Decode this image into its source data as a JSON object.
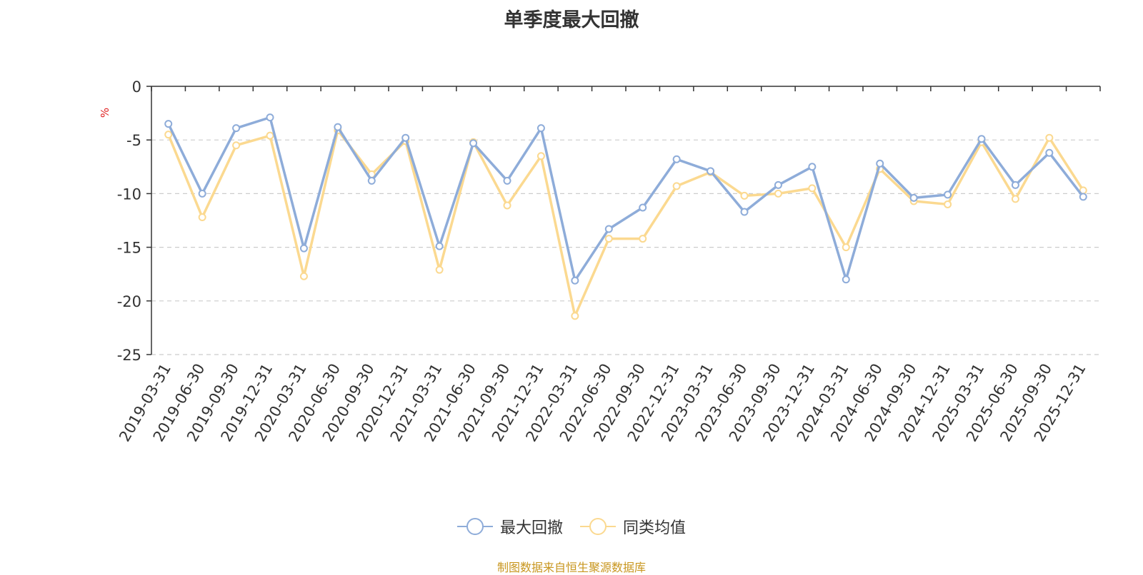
{
  "chart_data": {
    "type": "line",
    "title": "单季度最大回撤",
    "ylabel": "%",
    "ylim": [
      -25,
      0
    ],
    "yticks": [
      0,
      -5,
      -10,
      -15,
      -20,
      -25
    ],
    "grid": true,
    "legend_position": "bottom-center",
    "categories": [
      "2019-03-31",
      "2019-06-30",
      "2019-09-30",
      "2019-12-31",
      "2020-03-31",
      "2020-06-30",
      "2020-09-30",
      "2020-12-31",
      "2021-03-31",
      "2021-06-30",
      "2021-09-30",
      "2021-12-31",
      "2022-03-31",
      "2022-06-30",
      "2022-09-30",
      "2022-12-31",
      "2023-03-31",
      "2023-06-30",
      "2023-09-30",
      "2023-12-31",
      "2024-03-31",
      "2024-06-30",
      "2024-09-30",
      "2024-12-31",
      "2025-03-31",
      "2025-06-30",
      "2025-09-30",
      "2025-12-31"
    ],
    "series": [
      {
        "name": "最大回撤",
        "color": "#8eacd9",
        "values": [
          -3.5,
          -10.0,
          -3.9,
          -2.9,
          -15.1,
          -3.8,
          -8.8,
          -4.8,
          -14.9,
          -5.3,
          -8.8,
          -3.9,
          -18.1,
          -13.3,
          -11.3,
          -6.8,
          -7.9,
          -11.7,
          -9.2,
          -7.5,
          -18.0,
          -7.2,
          -10.4,
          -10.1,
          -4.9,
          -9.2,
          -6.2,
          -10.3
        ]
      },
      {
        "name": "同类均值",
        "color": "#fbd990",
        "values": [
          -4.5,
          -12.2,
          -5.5,
          -4.6,
          -17.7,
          -4.1,
          -8.2,
          -5.1,
          -17.1,
          -5.2,
          -11.1,
          -6.5,
          -21.4,
          -14.2,
          -14.2,
          -9.3,
          -8.0,
          -10.2,
          -10.0,
          -9.5,
          -15.0,
          -7.7,
          -10.7,
          -11.0,
          -5.2,
          -10.5,
          -4.8,
          -9.7
        ]
      }
    ]
  },
  "source_note": "制图数据来自恒生聚源数据库"
}
